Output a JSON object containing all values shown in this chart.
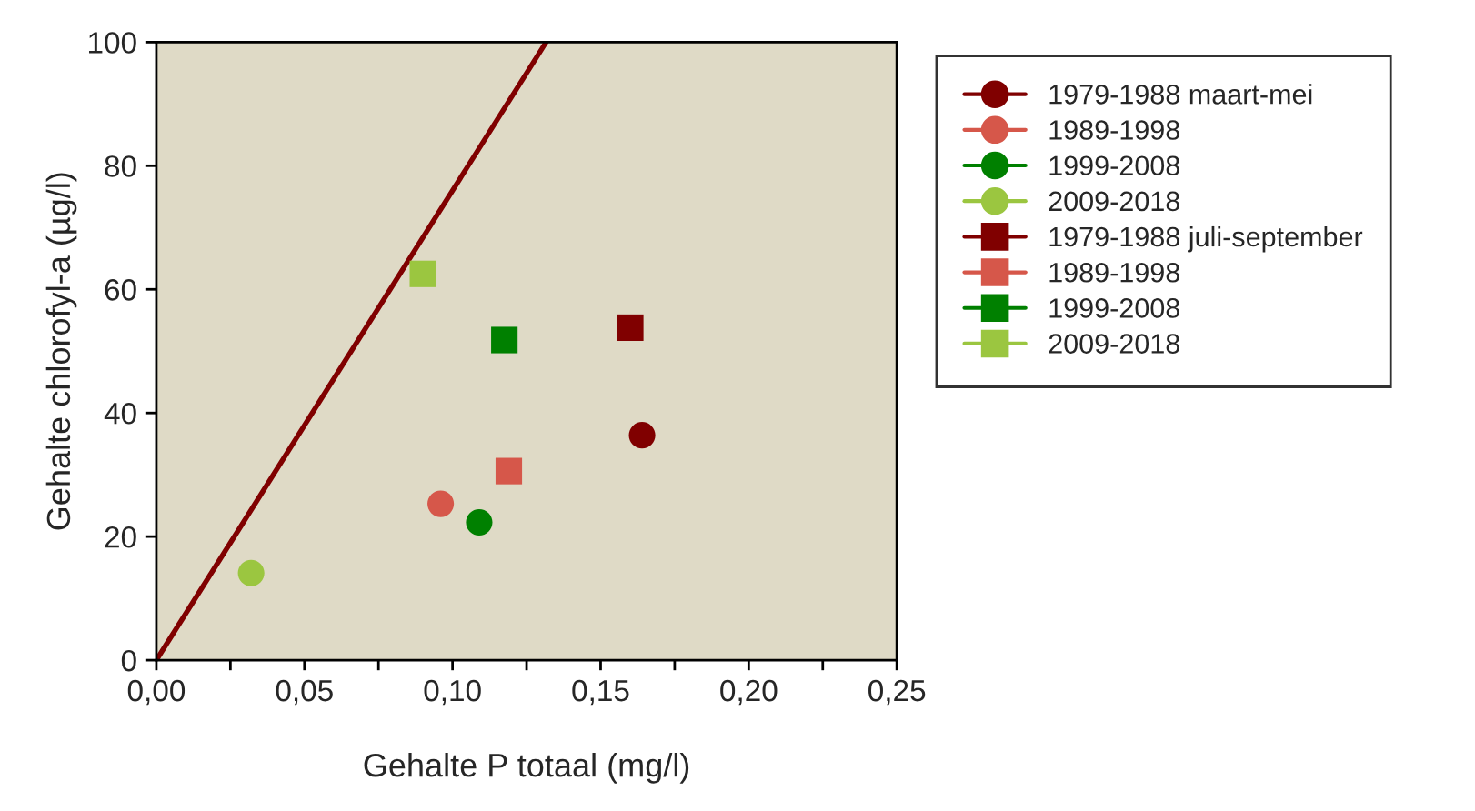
{
  "chart_data": {
    "type": "scatter",
    "xlabel": "Gehalte P totaal (mg/l)",
    "ylabel": "Gehalte chlorofyl-a (µg/l)",
    "xlim": [
      0,
      0.25
    ],
    "ylim": [
      0,
      100
    ],
    "xticks": [
      {
        "value": 0,
        "label": "0,00"
      },
      {
        "value": 0.025,
        "label": null
      },
      {
        "value": 0.05,
        "label": "0,05"
      },
      {
        "value": 0.075,
        "label": null
      },
      {
        "value": 0.1,
        "label": "0,10"
      },
      {
        "value": 0.125,
        "label": null
      },
      {
        "value": 0.15,
        "label": "0,15"
      },
      {
        "value": 0.175,
        "label": null
      },
      {
        "value": 0.2,
        "label": "0,20"
      },
      {
        "value": 0.225,
        "label": null
      },
      {
        "value": 0.25,
        "label": "0,25"
      }
    ],
    "yticks": [
      0,
      20,
      40,
      60,
      80,
      100
    ],
    "grid": false,
    "legend": "right",
    "series": [
      {
        "name": "1979-1988 maart-mei",
        "color": "#800000",
        "marker": "circle",
        "x": [
          0.164
        ],
        "values": [
          36.4
        ]
      },
      {
        "name": "1989-1998",
        "color": "#d6574a",
        "marker": "circle",
        "x": [
          0.096
        ],
        "values": [
          25.3
        ]
      },
      {
        "name": "1999-2008",
        "color": "#008000",
        "marker": "circle",
        "x": [
          0.109
        ],
        "values": [
          22.3
        ]
      },
      {
        "name": "2009-2018",
        "color": "#9bc640",
        "marker": "circle",
        "x": [
          0.032
        ],
        "values": [
          14.1
        ]
      },
      {
        "name": "1979-1988 juli-september",
        "color": "#800000",
        "marker": "square",
        "x": [
          0.16
        ],
        "values": [
          53.8
        ]
      },
      {
        "name": "1989-1998",
        "color": "#d6574a",
        "marker": "square",
        "x": [
          0.119
        ],
        "values": [
          30.6
        ]
      },
      {
        "name": "1999-2008",
        "color": "#008000",
        "marker": "square",
        "x": [
          0.1175
        ],
        "values": [
          51.8
        ]
      },
      {
        "name": "2009-2018",
        "color": "#9bc640",
        "marker": "square",
        "x": [
          0.09
        ],
        "values": [
          62.5
        ]
      },
      {
        "type": "line",
        "color": "#800000",
        "marker": "none",
        "line_style": "solid",
        "x": [
          0,
          0.1316
        ],
        "values": [
          0,
          100
        ]
      }
    ]
  }
}
